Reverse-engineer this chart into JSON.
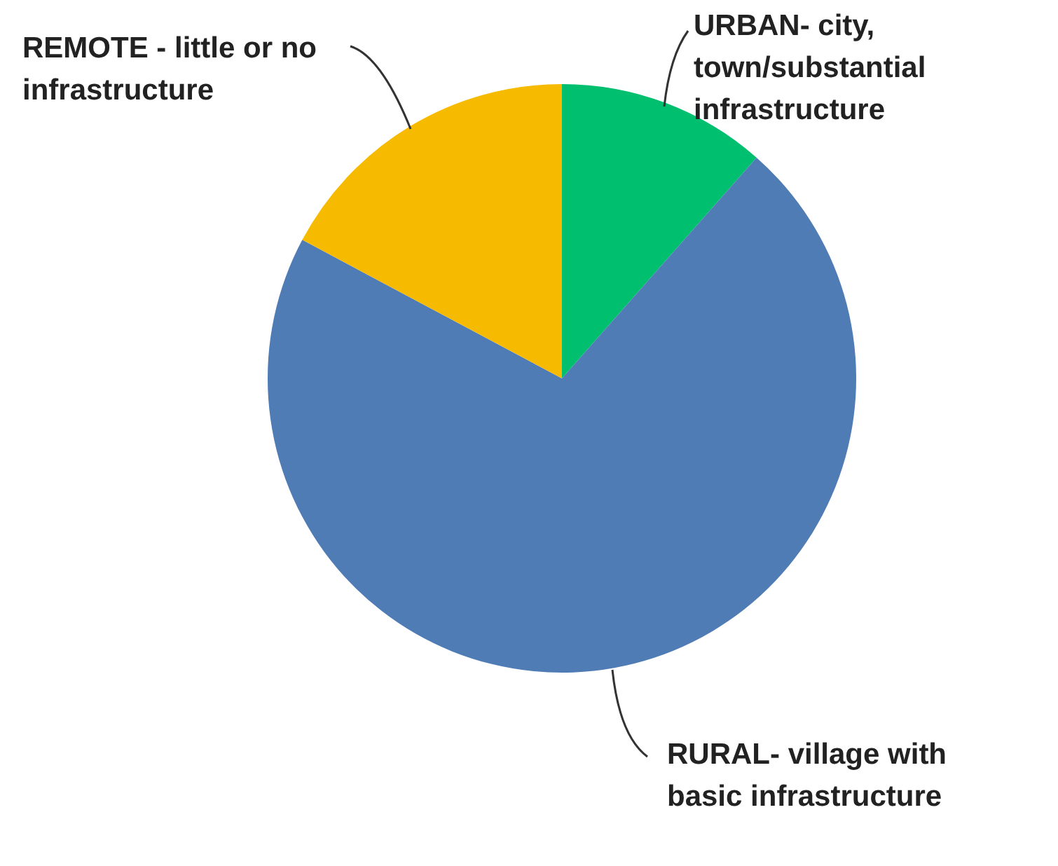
{
  "chart_data": {
    "type": "pie",
    "categories": [
      "URBAN- city, town/substantial infrastructure",
      "RURAL- village with basic infrastructure",
      "REMOTE - little or no infrastructure"
    ],
    "values": [
      11.5,
      71.3,
      17.2
    ],
    "colors": [
      "#00bf6f",
      "#507cb5",
      "#f6bb00"
    ],
    "legend": false
  }
}
